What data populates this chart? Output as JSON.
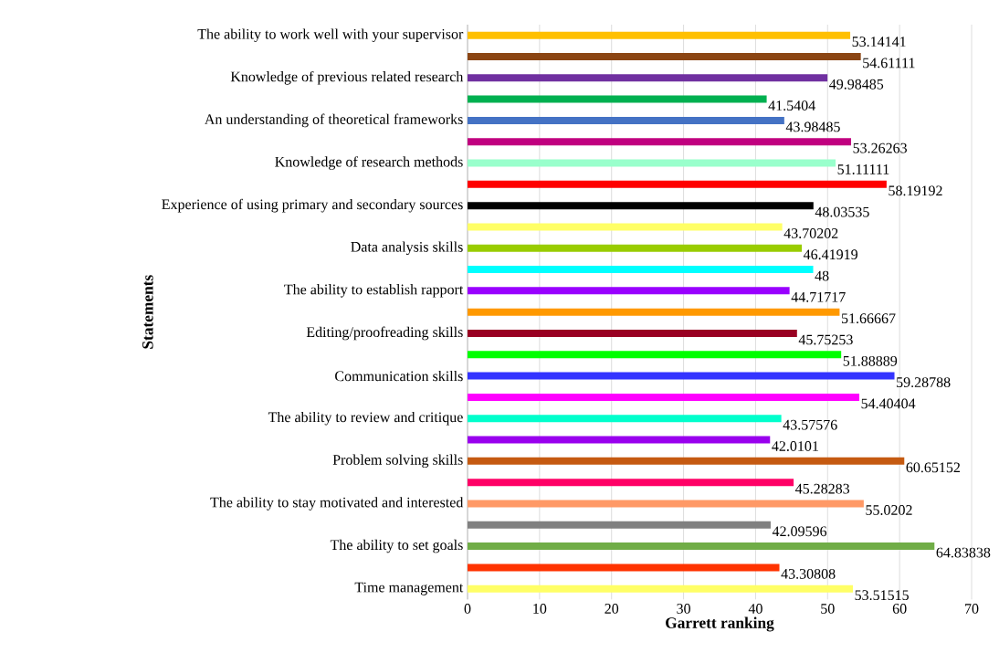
{
  "chart_data": {
    "type": "bar",
    "orientation": "horizontal",
    "xlabel": "Garrett ranking",
    "ylabel": "Statements",
    "categories": [
      "The ability to work well with your supervisor",
      null,
      "Knowledge of previous related research",
      null,
      "An understanding of theoretical frameworks",
      null,
      "Knowledge of research methods",
      null,
      "Experience of using primary and secondary sources",
      null,
      "Data analysis skills",
      null,
      "The ability to establish rapport",
      null,
      "Editing/proofreading skills",
      null,
      "Communication skills",
      null,
      "The ability to review and critique",
      null,
      "Problem solving skills",
      null,
      "The ability to stay motivated and interested",
      null,
      "The ability to set goals",
      null,
      "Time management"
    ],
    "values": [
      53.14141,
      54.61111,
      49.98485,
      41.5404,
      43.98485,
      53.26263,
      51.11111,
      58.19192,
      48.03535,
      43.70202,
      46.41919,
      48,
      44.71717,
      51.66667,
      45.75253,
      51.88889,
      59.28788,
      54.40404,
      43.57576,
      42.0101,
      60.65152,
      45.28283,
      55.0202,
      42.09596,
      64.83838,
      43.30808,
      53.51515
    ],
    "colors": [
      "#ffc000",
      "#8b4513",
      "#7030a0",
      "#00b050",
      "#4472c4",
      "#c0007f",
      "#99ffcc",
      "#ff0000",
      "#000000",
      "#ffff66",
      "#99cc00",
      "#00ffff",
      "#9900ff",
      "#ff9900",
      "#990022",
      "#00ff00",
      "#3333ff",
      "#ff00ff",
      "#00ffcc",
      "#9900ee",
      "#c55a11",
      "#ff0066",
      "#ff9966",
      "#808080",
      "#70ad47",
      "#ff3300",
      "#ffff66"
    ],
    "xlim": [
      0,
      70
    ],
    "xticks": [
      0,
      10,
      20,
      30,
      40,
      50,
      60,
      70
    ],
    "grid": "x",
    "data_labels": true
  }
}
